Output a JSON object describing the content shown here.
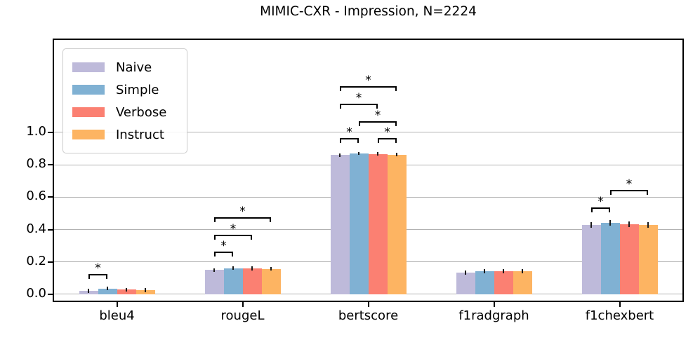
{
  "chart_data": {
    "type": "bar",
    "title": "MIMIC-CXR - Impression, N=2224",
    "categories": [
      "bleu4",
      "rougeL",
      "bertscore",
      "f1radgraph",
      "f1chexbert"
    ],
    "series": [
      {
        "name": "Naive",
        "color": "#bebada",
        "values": [
          0.022,
          0.15,
          0.86,
          0.135,
          0.428
        ],
        "errors": [
          0.012,
          0.012,
          0.01,
          0.013,
          0.017
        ]
      },
      {
        "name": "Simple",
        "color": "#80b1d3",
        "values": [
          0.036,
          0.162,
          0.87,
          0.143,
          0.442
        ],
        "errors": [
          0.012,
          0.012,
          0.01,
          0.013,
          0.017
        ]
      },
      {
        "name": "Verbose",
        "color": "#fb8072",
        "values": [
          0.029,
          0.159,
          0.867,
          0.141,
          0.434
        ],
        "errors": [
          0.012,
          0.012,
          0.01,
          0.013,
          0.017
        ]
      },
      {
        "name": "Instruct",
        "color": "#fdb462",
        "values": [
          0.026,
          0.157,
          0.863,
          0.143,
          0.429
        ],
        "errors": [
          0.012,
          0.012,
          0.01,
          0.013,
          0.017
        ]
      }
    ],
    "ytick_values": [
      0.0,
      0.2,
      0.4,
      0.6,
      0.8,
      1.0
    ],
    "ytick_labels": [
      "0.0",
      "0.2",
      "0.4",
      "0.6",
      "0.8",
      "1.0"
    ],
    "ylim": [
      -0.039,
      1.571
    ],
    "xlabel": "",
    "ylabel": "",
    "grid": "horizontal",
    "legend_position": "upper-left",
    "significance_brackets": [
      {
        "category": 0,
        "from": 0,
        "to": 1,
        "height": 0.125,
        "label": "*"
      },
      {
        "category": 1,
        "from": 0,
        "to": 1,
        "height": 0.264,
        "label": "*"
      },
      {
        "category": 1,
        "from": 0,
        "to": 2,
        "height": 0.368,
        "label": "*"
      },
      {
        "category": 1,
        "from": 0,
        "to": 3,
        "height": 0.476,
        "label": "*"
      },
      {
        "category": 2,
        "from": 0,
        "to": 1,
        "height": 0.965,
        "label": "*"
      },
      {
        "category": 2,
        "from": 2,
        "to": 3,
        "height": 0.965,
        "label": "*"
      },
      {
        "category": 2,
        "from": 1,
        "to": 3,
        "height": 1.069,
        "label": "*"
      },
      {
        "category": 2,
        "from": 0,
        "to": 2,
        "height": 1.177,
        "label": "*"
      },
      {
        "category": 2,
        "from": 0,
        "to": 3,
        "height": 1.286,
        "label": "*"
      },
      {
        "category": 4,
        "from": 0,
        "to": 1,
        "height": 0.537,
        "label": "*"
      },
      {
        "category": 4,
        "from": 1,
        "to": 3,
        "height": 0.645,
        "label": "*"
      }
    ],
    "colors": {
      "grid": "#b2b2b2",
      "spine": "#000000",
      "error_bar": "#1a1a1a",
      "background": "#ffffff"
    }
  }
}
